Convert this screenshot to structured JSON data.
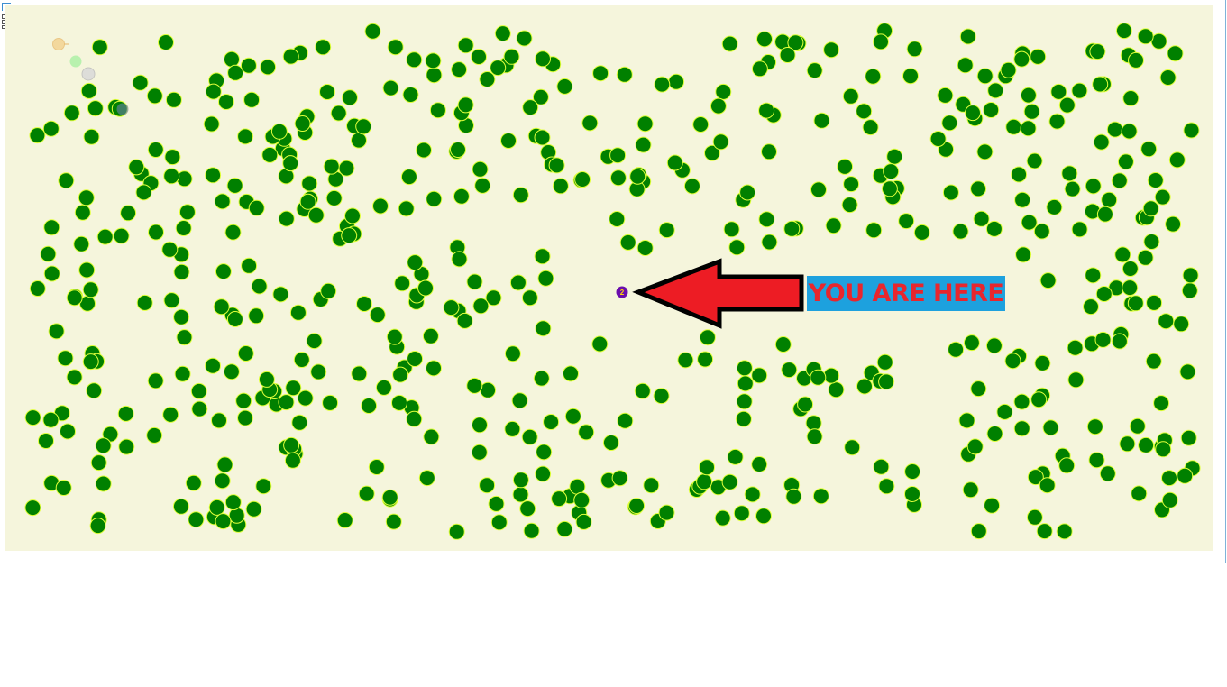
{
  "game": {
    "callout_text": "YOU ARE HERE",
    "player_label": "2",
    "colors": {
      "field_background": "#f5f5dc",
      "dot_fill": "#008000",
      "dot_outline": "#e1ff3c",
      "player_fill": "#6a0dad",
      "player_label": "#ffd700",
      "arrow_fill": "#ed1c24",
      "arrow_outline": "#000000",
      "callout_background": "#1da1de",
      "callout_text": "#e8262d"
    },
    "icons": {
      "menu": "menu-icon",
      "arrow": "arrow-left-icon"
    }
  }
}
